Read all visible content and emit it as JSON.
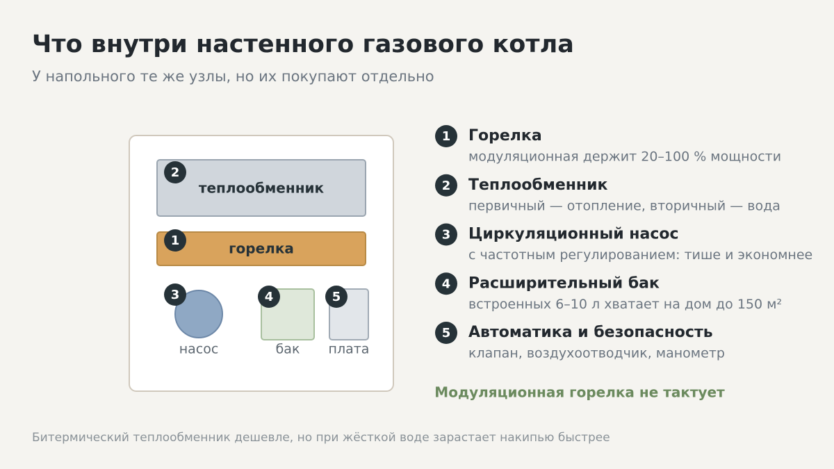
{
  "header": {
    "title": "Что внутри настенного газового котла",
    "subtitle": "У напольного те же узлы, но их покупают отдельно"
  },
  "diagram": {
    "parts": [
      {
        "badge": "2",
        "label": "теплообменник"
      },
      {
        "badge": "1",
        "label": "горелка"
      },
      {
        "badge": "3",
        "label": "насос"
      },
      {
        "badge": "4",
        "label": "бак"
      },
      {
        "badge": "5",
        "label": "плата"
      }
    ]
  },
  "list": [
    {
      "number": "1",
      "title": "Горелка",
      "description": "модуляционная держит 20–100 % мощности"
    },
    {
      "number": "2",
      "title": "Теплообменник",
      "description": "первичный — отопление, вторичный — вода"
    },
    {
      "number": "3",
      "title": "Циркуляционный насос",
      "description": "с частотным регулированием: тише и экономнее"
    },
    {
      "number": "4",
      "title": "Расширительный бак",
      "description": "встроенных 6–10 л хватает на дом до 150 м²"
    },
    {
      "number": "5",
      "title": "Автоматика и безопасность",
      "description": "клапан, воздухоотводчик, манометр"
    }
  ],
  "highlight": "Модуляционная горелка не тактует",
  "footnote": "Битермический теплообменник дешевле, но при жёсткой воде зарастает накипью быстрее"
}
